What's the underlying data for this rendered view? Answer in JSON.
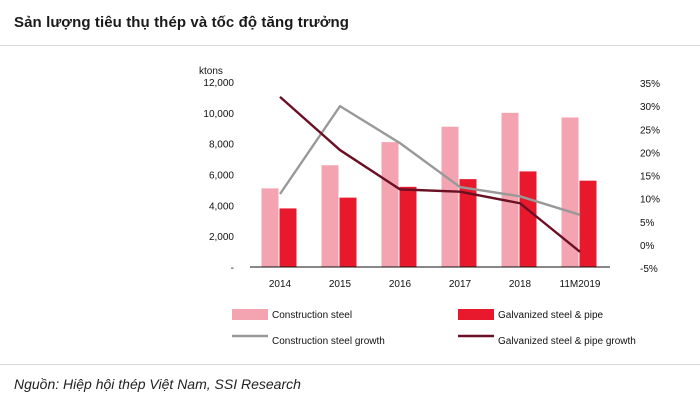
{
  "header": {
    "title": "Sản lượng tiêu thụ thép và tốc độ tăng trưởng"
  },
  "footer": {
    "source": "Nguồn: Hiệp hội thép Việt Nam, SSI Research"
  },
  "chart_data": {
    "type": "bar",
    "categories": [
      "2014",
      "2015",
      "2016",
      "2017",
      "2018",
      "11M2019"
    ],
    "y_unit_label": "ktons",
    "ylim": [
      0,
      12000
    ],
    "y_ticks": [
      "-",
      "2,000",
      "4,000",
      "6,000",
      "8,000",
      "10,000",
      "12,000"
    ],
    "y2lim": [
      -5,
      35
    ],
    "y2_ticks": [
      "-5%",
      "0%",
      "5%",
      "10%",
      "15%",
      "20%",
      "25%",
      "30%",
      "35%"
    ],
    "grid": false,
    "legend_position": "bottom",
    "series": [
      {
        "name": "Construction steel",
        "kind": "bar",
        "axis": "left",
        "color": "#f4a3b1",
        "values": [
          5100,
          6600,
          8100,
          9100,
          10000,
          9700
        ]
      },
      {
        "name": "Galvanized steel & pipe",
        "kind": "bar",
        "axis": "left",
        "color": "#e8192c",
        "values": [
          3800,
          4500,
          5200,
          5700,
          6200,
          5600
        ]
      },
      {
        "name": "Construction steel growth",
        "kind": "line",
        "axis": "right",
        "color": "#999999",
        "values": [
          11,
          30,
          22,
          12.5,
          10.5,
          6.5
        ]
      },
      {
        "name": "Galvanized steel & pipe growth",
        "kind": "line",
        "axis": "right",
        "color": "#6b0f24",
        "values": [
          32,
          20.5,
          12,
          11.5,
          9,
          -1.5
        ]
      }
    ]
  }
}
